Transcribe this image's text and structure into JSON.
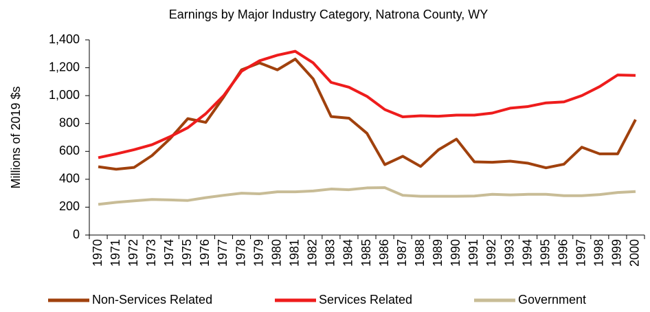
{
  "chart_data": {
    "type": "line",
    "title": "Earnings by Major Industry Category, Natrona County, WY",
    "y_label": "Millions of 2019 $s",
    "categories": [
      "1970",
      "1971",
      "1972",
      "1973",
      "1974",
      "1975",
      "1976",
      "1977",
      "1978",
      "1979",
      "1980",
      "1981",
      "1982",
      "1983",
      "1984",
      "1985",
      "1986",
      "1987",
      "1988",
      "1989",
      "1990",
      "1991",
      "1992",
      "1993",
      "1994",
      "1995",
      "1996",
      "1997",
      "1998",
      "1999",
      "2000"
    ],
    "series": [
      {
        "name": "Non-Services Related",
        "color": "#a0410d",
        "values": [
          490,
          472,
          485,
          570,
          690,
          835,
          808,
          990,
          1185,
          1235,
          1185,
          1262,
          1120,
          850,
          838,
          730,
          505,
          565,
          492,
          612,
          688,
          525,
          522,
          530,
          515,
          482,
          508,
          630,
          582,
          582,
          828
        ]
      },
      {
        "name": "Services Related",
        "color": "#ee1c1c",
        "values": [
          555,
          582,
          612,
          648,
          705,
          770,
          870,
          1000,
          1175,
          1250,
          1290,
          1318,
          1235,
          1095,
          1060,
          995,
          900,
          848,
          855,
          852,
          860,
          860,
          875,
          910,
          922,
          948,
          955,
          1000,
          1065,
          1148,
          1145
        ]
      },
      {
        "name": "Government",
        "color": "#c8bc96",
        "values": [
          220,
          235,
          245,
          255,
          252,
          248,
          268,
          285,
          300,
          296,
          310,
          310,
          316,
          330,
          325,
          338,
          340,
          285,
          278,
          278,
          278,
          280,
          292,
          288,
          292,
          292,
          282,
          282,
          290,
          305,
          312
        ]
      }
    ],
    "ylim": [
      0,
      1400
    ],
    "yticks": [
      0,
      200,
      400,
      600,
      800,
      {
        "value": 1000,
        "label": "1,000"
      },
      {
        "value": 1200,
        "label": "1,200"
      },
      {
        "value": 1400,
        "label": "1,400"
      }
    ],
    "grid": false,
    "legend": "bottom"
  }
}
